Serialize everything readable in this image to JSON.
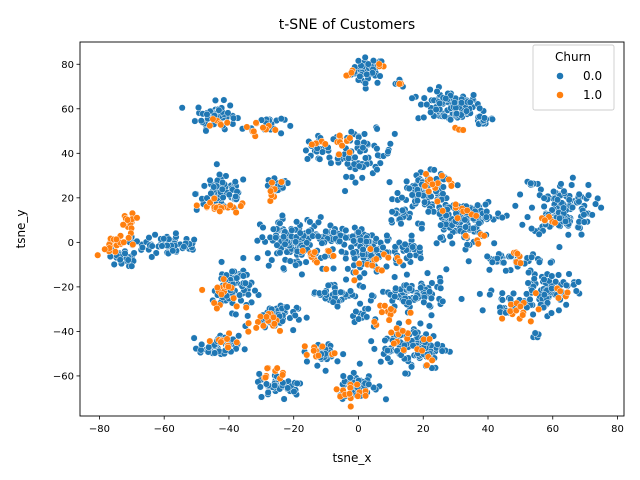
{
  "chart_data": {
    "type": "scatter",
    "title": "t-SNE of Customers",
    "xlabel": "tsne_x",
    "ylabel": "tsne_y",
    "xlim": [
      -86,
      82
    ],
    "ylim": [
      -78,
      90
    ],
    "xticks": [
      -80,
      -60,
      -40,
      -20,
      0,
      20,
      40,
      60,
      80
    ],
    "yticks": [
      -60,
      -40,
      -20,
      0,
      20,
      40,
      60,
      80
    ],
    "xtick_labels": [
      "−80",
      "−60",
      "−40",
      "−20",
      "0",
      "20",
      "40",
      "60",
      "80"
    ],
    "ytick_labels": [
      "−60",
      "−40",
      "−20",
      "0",
      "20",
      "40",
      "60",
      "80"
    ],
    "grid": false,
    "legend": {
      "title": "Churn",
      "placement": "top-right",
      "entries": [
        {
          "label": "0.0",
          "color": "#1f77b4"
        },
        {
          "label": "1.0",
          "color": "#ff7f0e"
        }
      ]
    },
    "series": [
      {
        "name": "0.0",
        "color": "#1f77b4",
        "clusters": [
          {
            "cx": 3,
            "cy": 77,
            "sx": 2.5,
            "sy": 3,
            "n": 45
          },
          {
            "cx": 13,
            "cy": 72,
            "sx": 1,
            "sy": 1,
            "n": 5
          },
          {
            "cx": 28,
            "cy": 61,
            "sx": 5,
            "sy": 3.5,
            "n": 90
          },
          {
            "cx": 39,
            "cy": 55,
            "sx": 2,
            "sy": 1.5,
            "n": 15
          },
          {
            "cx": -44,
            "cy": 57,
            "sx": 3,
            "sy": 3,
            "n": 55
          },
          {
            "cx": -28,
            "cy": 53,
            "sx": 2.5,
            "sy": 2.5,
            "n": 20
          },
          {
            "cx": 1,
            "cy": 40,
            "sx": 5,
            "sy": 5,
            "n": 70
          },
          {
            "cx": -13,
            "cy": 42,
            "sx": 2,
            "sy": 2.5,
            "n": 20
          },
          {
            "cx": -42,
            "cy": 22,
            "sx": 4,
            "sy": 4,
            "n": 70
          },
          {
            "cx": -25,
            "cy": 25,
            "sx": 2,
            "sy": 2,
            "n": 20
          },
          {
            "cx": 21,
            "cy": 23,
            "sx": 4,
            "sy": 4,
            "n": 90
          },
          {
            "cx": 13,
            "cy": 12,
            "sx": 2,
            "sy": 1.5,
            "n": 20
          },
          {
            "cx": 30,
            "cy": 8,
            "sx": 5,
            "sy": 5,
            "n": 90
          },
          {
            "cx": 38,
            "cy": 13,
            "sx": 3,
            "sy": 3,
            "n": 35
          },
          {
            "cx": 63,
            "cy": 15,
            "sx": 5,
            "sy": 6,
            "n": 120
          },
          {
            "cx": 53,
            "cy": 26,
            "sx": 1,
            "sy": 0.7,
            "n": 6
          },
          {
            "cx": -73,
            "cy": -7,
            "sx": 2,
            "sy": 2,
            "n": 25
          },
          {
            "cx": -62,
            "cy": -1,
            "sx": 4,
            "sy": 2.5,
            "n": 50
          },
          {
            "cx": -52,
            "cy": -2,
            "sx": 1.5,
            "sy": 1.5,
            "n": 10
          },
          {
            "cx": -20,
            "cy": 0,
            "sx": 5,
            "sy": 5.5,
            "n": 120
          },
          {
            "cx": -9,
            "cy": 3,
            "sx": 3,
            "sy": 3,
            "n": 30
          },
          {
            "cx": 3,
            "cy": -4,
            "sx": 5,
            "sy": 4.5,
            "n": 110
          },
          {
            "cx": 17,
            "cy": -3,
            "sx": 2.5,
            "sy": 2.5,
            "n": 20
          },
          {
            "cx": 46,
            "cy": -8,
            "sx": 5,
            "sy": 2,
            "n": 35
          },
          {
            "cx": -39,
            "cy": -20,
            "sx": 3,
            "sy": 5,
            "n": 80
          },
          {
            "cx": 17,
            "cy": -24,
            "sx": 5,
            "sy": 3.5,
            "n": 80
          },
          {
            "cx": 58,
            "cy": -22,
            "sx": 4.5,
            "sy": 5,
            "n": 85
          },
          {
            "cx": 45,
            "cy": -27,
            "sx": 2.5,
            "sy": 3,
            "n": 20
          },
          {
            "cx": -7,
            "cy": -23,
            "sx": 4,
            "sy": 2.5,
            "n": 40
          },
          {
            "cx": -26,
            "cy": -33,
            "sx": 3.5,
            "sy": 3,
            "n": 40
          },
          {
            "cx": 1,
            "cy": -33,
            "sx": 1.5,
            "sy": 1.5,
            "n": 12
          },
          {
            "cx": 54,
            "cy": -42,
            "sx": 1,
            "sy": 0.7,
            "n": 6
          },
          {
            "cx": -43,
            "cy": -47,
            "sx": 3,
            "sy": 2.5,
            "n": 50
          },
          {
            "cx": -11,
            "cy": -50,
            "sx": 3,
            "sy": 2.5,
            "n": 30
          },
          {
            "cx": 17,
            "cy": -47,
            "sx": 5,
            "sy": 5,
            "n": 110
          },
          {
            "cx": -24,
            "cy": -64,
            "sx": 3.5,
            "sy": 2.5,
            "n": 45
          },
          {
            "cx": 0,
            "cy": -64,
            "sx": 3,
            "sy": 3,
            "n": 50
          }
        ]
      },
      {
        "name": "1.0",
        "color": "#ff7f0e",
        "clusters": [
          {
            "cx": -2,
            "cy": 76,
            "sx": 1,
            "sy": 0.7,
            "n": 4
          },
          {
            "cx": 7,
            "cy": 79,
            "sx": 1,
            "sy": 0.7,
            "n": 3
          },
          {
            "cx": 13,
            "cy": 71,
            "sx": 0.6,
            "sy": 0.6,
            "n": 2
          },
          {
            "cx": -30,
            "cy": 51,
            "sx": 3,
            "sy": 2,
            "n": 10
          },
          {
            "cx": -44,
            "cy": 54,
            "sx": 2,
            "sy": 1.5,
            "n": 6
          },
          {
            "cx": -4,
            "cy": 46,
            "sx": 2,
            "sy": 3,
            "n": 10
          },
          {
            "cx": -13,
            "cy": 45,
            "sx": 1,
            "sy": 1,
            "n": 4
          },
          {
            "cx": 31,
            "cy": 51,
            "sx": 1,
            "sy": 1,
            "n": 3
          },
          {
            "cx": -43,
            "cy": 16,
            "sx": 3,
            "sy": 1.5,
            "n": 20
          },
          {
            "cx": -26,
            "cy": 24,
            "sx": 2,
            "sy": 2,
            "n": 8
          },
          {
            "cx": 24,
            "cy": 27,
            "sx": 3,
            "sy": 2,
            "n": 12
          },
          {
            "cx": 30,
            "cy": 14,
            "sx": 4,
            "sy": 2,
            "n": 10
          },
          {
            "cx": 36,
            "cy": 2,
            "sx": 2,
            "sy": 2,
            "n": 6
          },
          {
            "cx": 58,
            "cy": 10,
            "sx": 2,
            "sy": 2,
            "n": 5
          },
          {
            "cx": -71,
            "cy": 10,
            "sx": 2,
            "sy": 2,
            "n": 12
          },
          {
            "cx": -76,
            "cy": -1,
            "sx": 3,
            "sy": 2,
            "n": 15
          },
          {
            "cx": -72,
            "cy": 4,
            "sx": 1.5,
            "sy": 1.5,
            "n": 6
          },
          {
            "cx": -13,
            "cy": -6,
            "sx": 2,
            "sy": 3,
            "n": 10
          },
          {
            "cx": 4,
            "cy": -8,
            "sx": 5,
            "sy": 3,
            "n": 15
          },
          {
            "cx": 48,
            "cy": -6,
            "sx": 2,
            "sy": 1.5,
            "n": 6
          },
          {
            "cx": -41,
            "cy": -26,
            "sx": 3,
            "sy": 3,
            "n": 12
          },
          {
            "cx": -42,
            "cy": -19,
            "sx": 1.5,
            "sy": 1.5,
            "n": 5
          },
          {
            "cx": 12,
            "cy": -31,
            "sx": 3,
            "sy": 2,
            "n": 8
          },
          {
            "cx": 50,
            "cy": -31,
            "sx": 3,
            "sy": 3,
            "n": 15
          },
          {
            "cx": 62,
            "cy": -22,
            "sx": 2,
            "sy": 2,
            "n": 5
          },
          {
            "cx": -28,
            "cy": -36,
            "sx": 3,
            "sy": 2.5,
            "n": 15
          },
          {
            "cx": -41,
            "cy": -45,
            "sx": 2,
            "sy": 2,
            "n": 10
          },
          {
            "cx": -13,
            "cy": -49,
            "sx": 3,
            "sy": 2,
            "n": 10
          },
          {
            "cx": 12,
            "cy": -41,
            "sx": 4,
            "sy": 4,
            "n": 15
          },
          {
            "cx": -27,
            "cy": -59,
            "sx": 2,
            "sy": 1.5,
            "n": 10
          },
          {
            "cx": -3,
            "cy": -67,
            "sx": 2.5,
            "sy": 3,
            "n": 15
          },
          {
            "cx": 20,
            "cy": -51,
            "sx": 2,
            "sy": 2,
            "n": 5
          }
        ]
      }
    ]
  }
}
